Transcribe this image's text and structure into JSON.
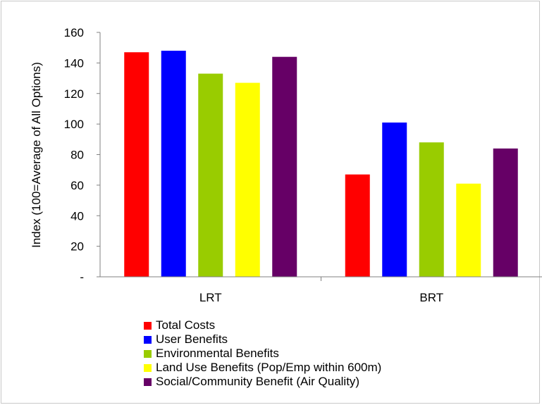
{
  "chart_data": {
    "type": "bar",
    "categories": [
      "LRT",
      "BRT"
    ],
    "ylabel": "Index (100=Average of All Options)",
    "ylim": [
      0,
      160
    ],
    "yticks": [
      {
        "value": 0,
        "label": "-"
      },
      {
        "value": 20,
        "label": "20"
      },
      {
        "value": 40,
        "label": "40"
      },
      {
        "value": 60,
        "label": "60"
      },
      {
        "value": 80,
        "label": "80"
      },
      {
        "value": 100,
        "label": "100"
      },
      {
        "value": 120,
        "label": "120"
      },
      {
        "value": 140,
        "label": "140"
      },
      {
        "value": 160,
        "label": "160"
      }
    ],
    "grid": false,
    "legend_position": "bottom",
    "series": [
      {
        "name": "Total Costs",
        "color": "#ff0000",
        "values": [
          147,
          67
        ]
      },
      {
        "name": "User Benefits",
        "color": "#0000ff",
        "values": [
          148,
          101
        ]
      },
      {
        "name": "Environmental Benefits",
        "color": "#99cc00",
        "values": [
          133,
          88
        ]
      },
      {
        "name": "Land Use Benefits (Pop/Emp within 600m)",
        "color": "#ffff00",
        "values": [
          127,
          61
        ]
      },
      {
        "name": "Social/Community Benefit (Air Quality)",
        "color": "#660066",
        "values": [
          144,
          84
        ]
      }
    ]
  }
}
